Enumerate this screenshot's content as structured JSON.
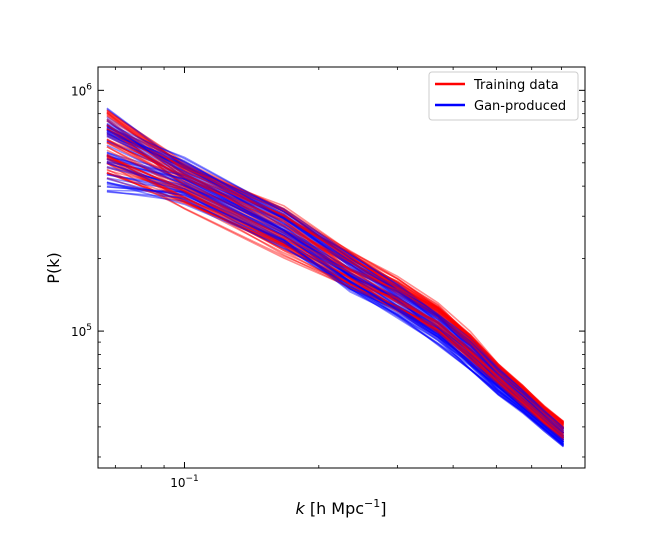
{
  "chart_data": {
    "type": "line",
    "xscale": "log",
    "yscale": "log",
    "xlabel_italic": "k",
    "xlabel_rest": " [h Mpc",
    "xlabel_sup": "−1",
    "xlabel_close": "]",
    "ylabel": "P(k)",
    "xlim": [
      0.064,
      0.79
    ],
    "ylim": [
      27000,
      1250000
    ],
    "x": [
      0.067,
      0.1,
      0.167,
      0.235,
      0.3,
      0.37,
      0.437,
      0.505,
      0.572,
      0.64,
      0.707
    ],
    "x_ticks": [
      {
        "value": 0.1,
        "label_base": "10",
        "label_exp": "−1"
      }
    ],
    "y_ticks": [
      {
        "value": 100000,
        "label_base": "10",
        "label_exp": "5"
      },
      {
        "value": 1000000,
        "label_base": "10",
        "label_exp": "6"
      }
    ],
    "grid": false,
    "legend_position": "top-right",
    "series": [
      {
        "name": "Training data",
        "color": "#ff0000",
        "min": [
          380000,
          290000,
          180000,
          130000,
          107000,
          86000,
          68000,
          55000,
          45000,
          38000,
          33000
        ],
        "max": [
          1000000,
          560000,
          360000,
          235000,
          180000,
          142000,
          107000,
          78000,
          64000,
          52000,
          45000
        ],
        "center": [
          560000,
          410000,
          270000,
          190000,
          147000,
          112000,
          88000,
          68000,
          55000,
          46000,
          39000
        ]
      },
      {
        "name": "Gan-produced",
        "color": "#0000ff",
        "min": [
          320000,
          320000,
          200000,
          130000,
          103000,
          80000,
          62000,
          50000,
          42000,
          36000,
          31000
        ],
        "max": [
          1060000,
          590000,
          350000,
          225000,
          170000,
          132000,
          100000,
          76000,
          62000,
          50000,
          42000
        ],
        "center": [
          560000,
          410000,
          268000,
          187000,
          143000,
          110000,
          84000,
          64000,
          52000,
          43000,
          37000
        ]
      }
    ]
  }
}
